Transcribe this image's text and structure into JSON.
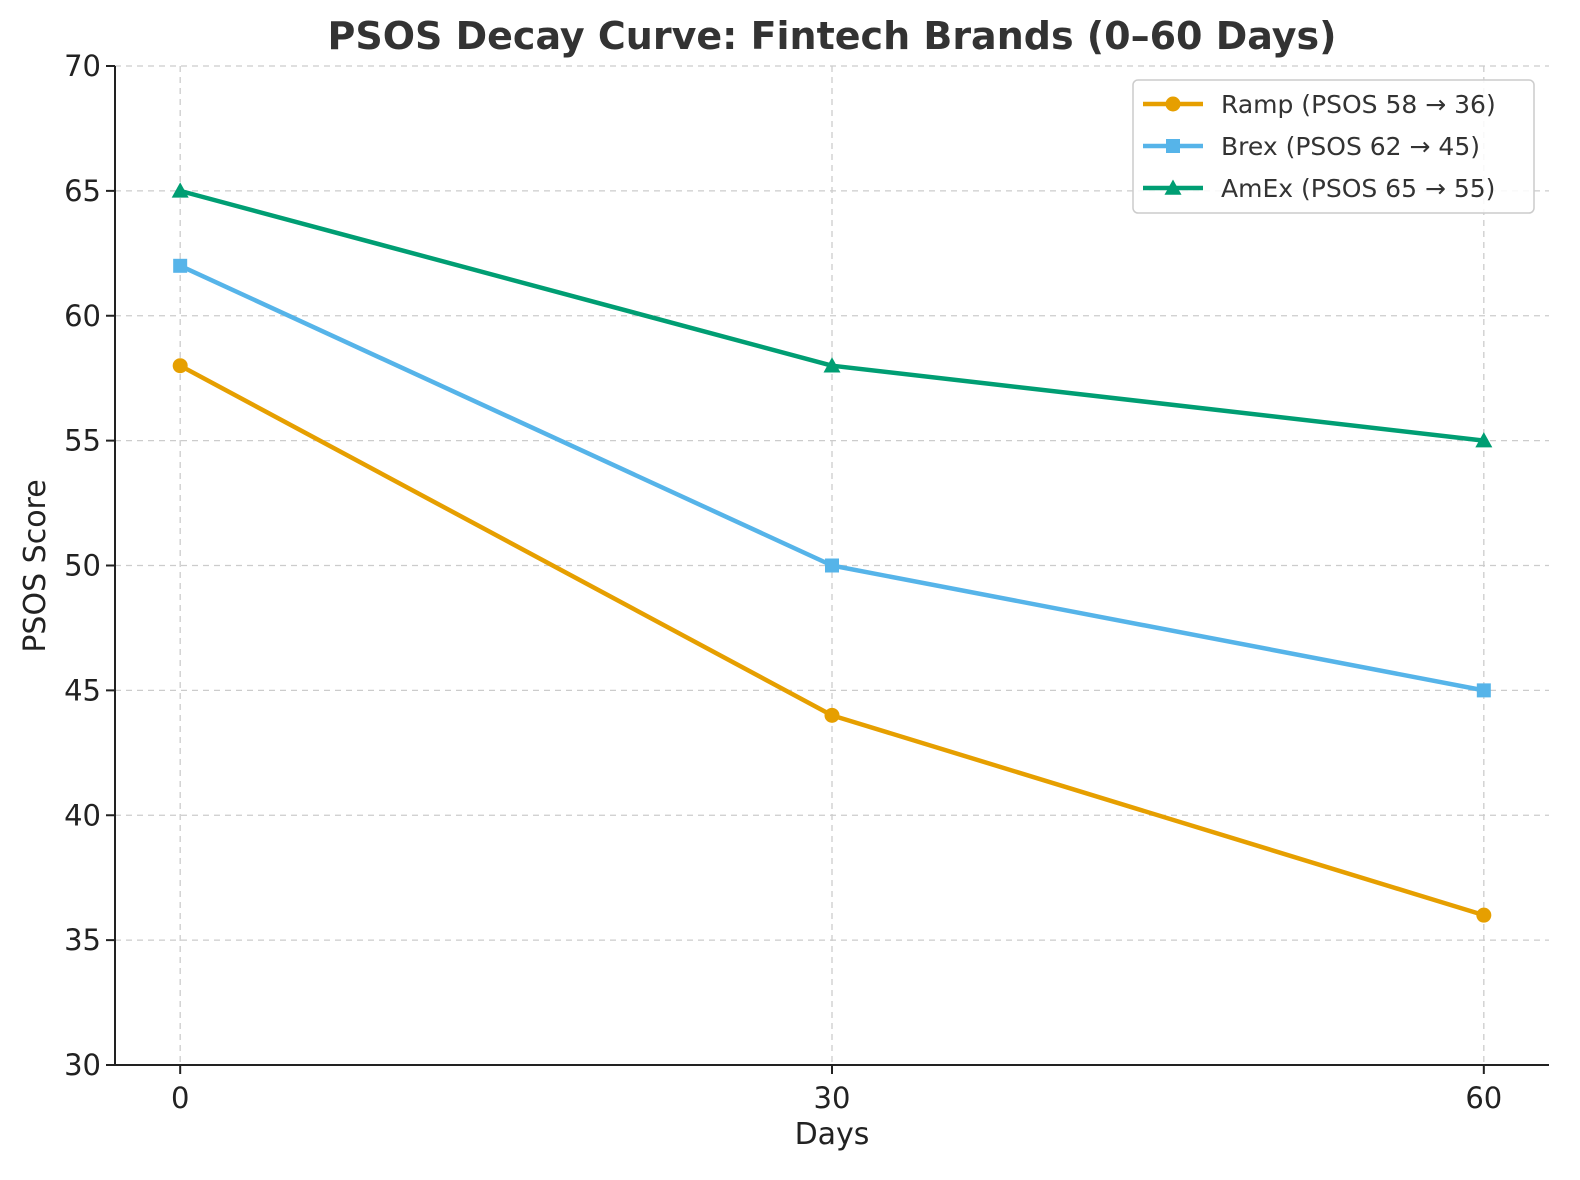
{
  "chart_data": {
    "type": "line",
    "title": "PSOS Decay Curve: Fintech Brands (0–60 Days)",
    "xlabel": "Days",
    "ylabel": "PSOS Score",
    "x": [
      0,
      30,
      60
    ],
    "xticks": [
      "0",
      "30",
      "60"
    ],
    "xlim": [
      -3,
      63
    ],
    "ylim": [
      30,
      70
    ],
    "yticks": [
      "30",
      "35",
      "40",
      "45",
      "50",
      "55",
      "60",
      "65",
      "70"
    ],
    "grid": true,
    "legend_position": "top-right",
    "series": [
      {
        "name": "Ramp (PSOS 58 → 36)",
        "values": [
          58,
          44,
          36
        ],
        "color": "#E69F00",
        "marker": "circle"
      },
      {
        "name": "Brex (PSOS 62 → 45)",
        "values": [
          62,
          50,
          45
        ],
        "color": "#56B4E9",
        "marker": "square"
      },
      {
        "name": "AmEx (PSOS 65 → 55)",
        "values": [
          65,
          58,
          55
        ],
        "color": "#009E73",
        "marker": "triangle"
      }
    ]
  }
}
